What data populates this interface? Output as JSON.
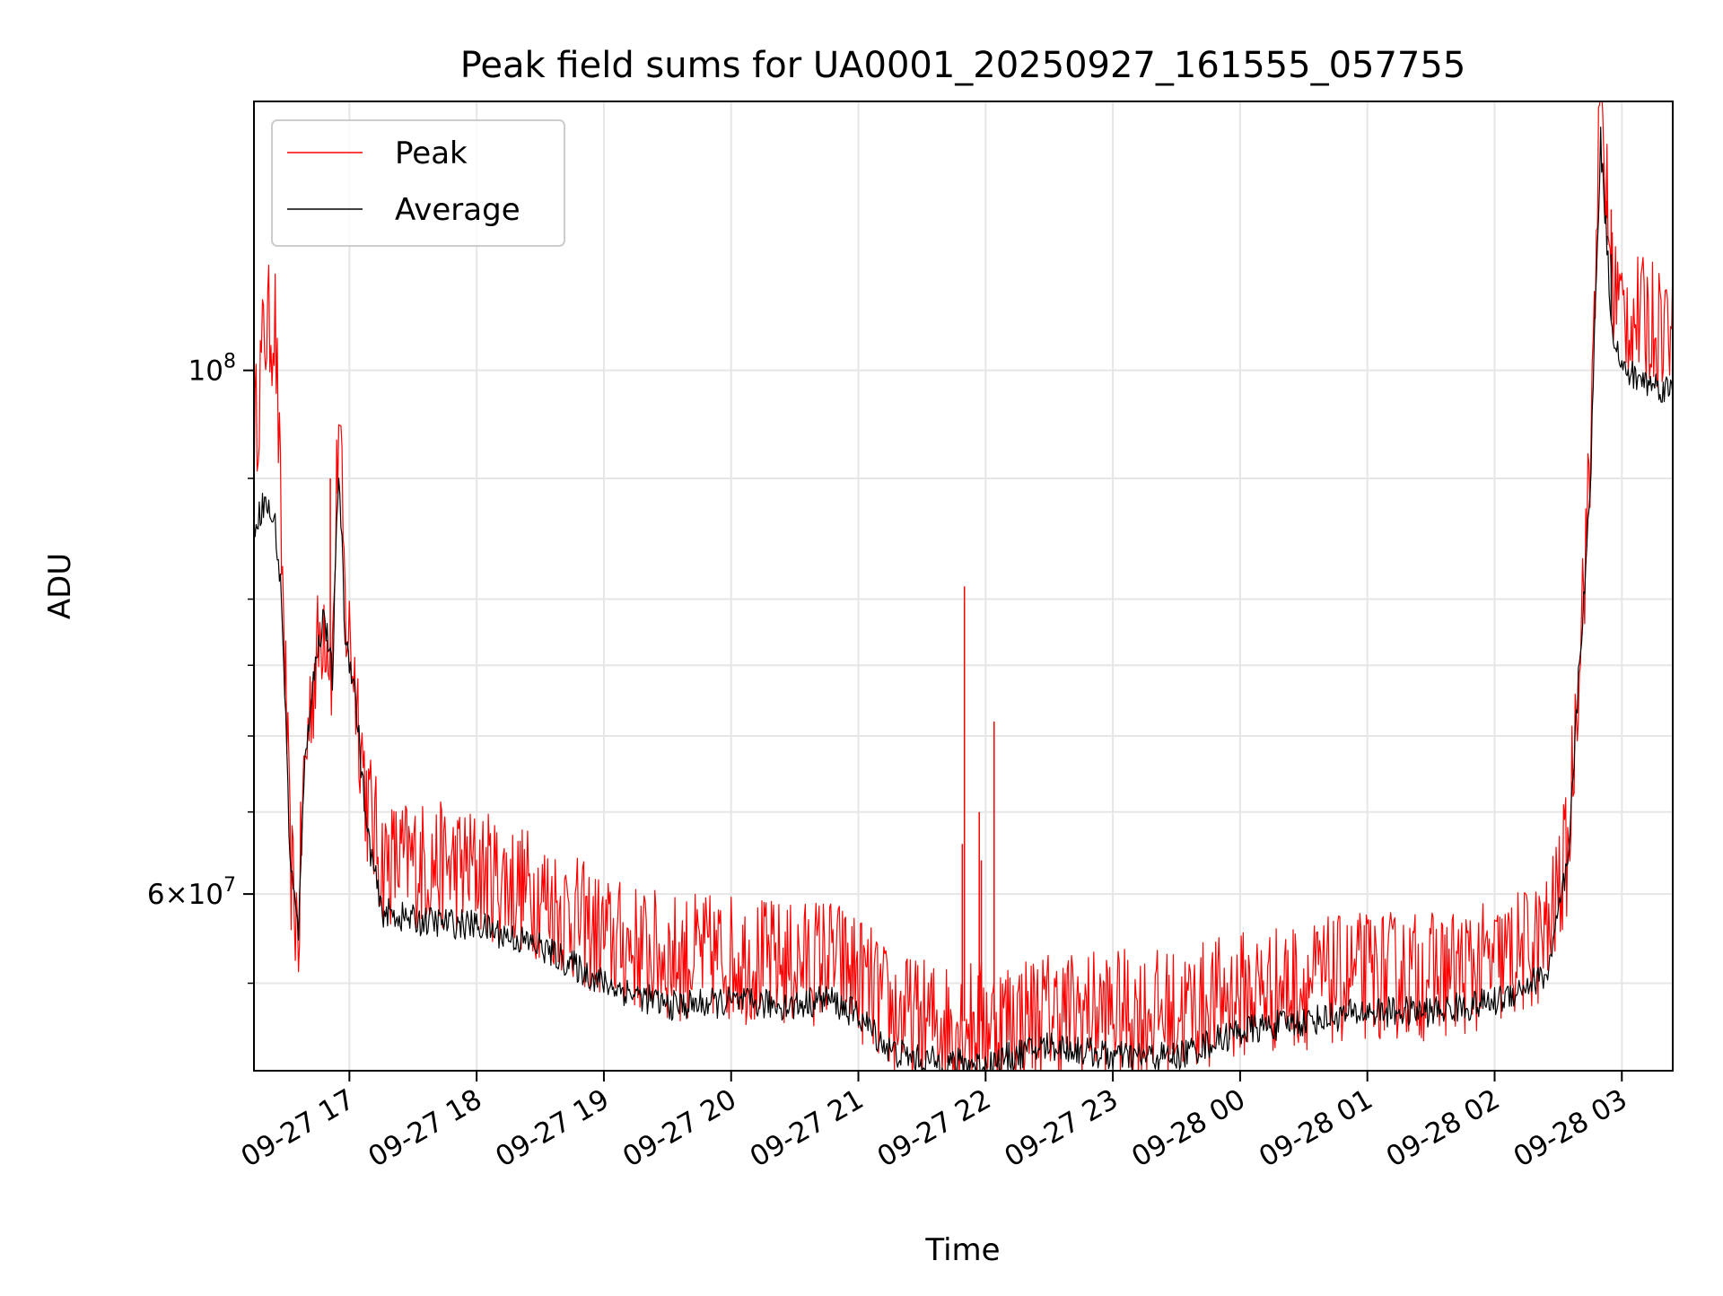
{
  "chart_data": {
    "type": "line",
    "title": "Peak field sums for UA0001_20250927_161555_057755",
    "xlabel": "Time",
    "ylabel": "ADU",
    "yscale": "log",
    "ylim": [
      50500000.0,
      130000000.0
    ],
    "xlim": [
      "2025-09-27 16:15",
      "2025-09-28 03:24"
    ],
    "grid": true,
    "legend_position": "upper left",
    "x_ticks": [
      {
        "label": "09-27 17",
        "time": "2025-09-27 17:00"
      },
      {
        "label": "09-27 18",
        "time": "2025-09-27 18:00"
      },
      {
        "label": "09-27 19",
        "time": "2025-09-27 19:00"
      },
      {
        "label": "09-27 20",
        "time": "2025-09-27 20:00"
      },
      {
        "label": "09-27 21",
        "time": "2025-09-27 21:00"
      },
      {
        "label": "09-27 22",
        "time": "2025-09-27 22:00"
      },
      {
        "label": "09-27 23",
        "time": "2025-09-27 23:00"
      },
      {
        "label": "09-28 00",
        "time": "2025-09-28 00:00"
      },
      {
        "label": "09-28 01",
        "time": "2025-09-28 01:00"
      },
      {
        "label": "09-28 02",
        "time": "2025-09-28 02:00"
      },
      {
        "label": "09-28 03",
        "time": "2025-09-28 03:00"
      }
    ],
    "y_major_ticks": [
      {
        "value": 60000000,
        "mantissa": "6",
        "base": "10",
        "exp": "7"
      },
      {
        "value": 100000000,
        "mantissa": "",
        "base": "10",
        "exp": "8"
      }
    ],
    "y_minor_grid": [
      55000000,
      65000000,
      70000000,
      75000000,
      80000000,
      90000000
    ],
    "series": [
      {
        "name": "Peak",
        "color": "#ff0000",
        "noise": 3800000,
        "points": [
          [
            "2025-09-27 16:15",
            93000000.0
          ],
          [
            "2025-09-27 16:20",
            104000000.0
          ],
          [
            "2025-09-27 16:25",
            105000000.0
          ],
          [
            "2025-09-27 16:28",
            84000000.0
          ],
          [
            "2025-09-27 16:32",
            62000000.0
          ],
          [
            "2025-09-27 16:36",
            57500000.0
          ],
          [
            "2025-09-27 16:38",
            66000000.0
          ],
          [
            "2025-09-27 16:42",
            73000000.0
          ],
          [
            "2025-09-27 16:48",
            79000000.0
          ],
          [
            "2025-09-27 16:52",
            75000000.0
          ],
          [
            "2025-09-27 16:55",
            96000000.0
          ],
          [
            "2025-09-27 16:58",
            79000000.0
          ],
          [
            "2025-09-27 17:02",
            75000000.0
          ],
          [
            "2025-09-27 17:08",
            66000000.0
          ],
          [
            "2025-09-27 17:15",
            62000000.0
          ],
          [
            "2025-09-27 17:30",
            62000000.0
          ],
          [
            "2025-09-27 18:00",
            61500000.0
          ],
          [
            "2025-09-27 18:30",
            60000000.0
          ],
          [
            "2025-09-27 19:00",
            57500000.0
          ],
          [
            "2025-09-27 19:30",
            56500000.0
          ],
          [
            "2025-09-27 20:00",
            56500000.0
          ],
          [
            "2025-09-27 20:30",
            56000000.0
          ],
          [
            "2025-09-27 20:45",
            56500000.0
          ],
          [
            "2025-09-27 21:00",
            55500000.0
          ],
          [
            "2025-09-27 21:15",
            53500000.0
          ],
          [
            "2025-09-27 21:30",
            53000000.0
          ],
          [
            "2025-09-27 22:00",
            53000000.0
          ],
          [
            "2025-09-27 22:30",
            53500000.0
          ],
          [
            "2025-09-27 23:00",
            53500000.0
          ],
          [
            "2025-09-27 23:30",
            53500000.0
          ],
          [
            "2025-09-28 00:00",
            54500000.0
          ],
          [
            "2025-09-28 00:30",
            55000000.0
          ],
          [
            "2025-09-28 01:00",
            55500000.0
          ],
          [
            "2025-09-28 01:30",
            55500000.0
          ],
          [
            "2025-09-28 02:00",
            56000000.0
          ],
          [
            "2025-09-28 02:25",
            57500000.0
          ],
          [
            "2025-09-28 02:35",
            63000000.0
          ],
          [
            "2025-09-28 02:45",
            90000000.0
          ],
          [
            "2025-09-28 02:48",
            116000000.0
          ],
          [
            "2025-09-28 02:50",
            130000000.0
          ],
          [
            "2025-09-28 02:55",
            110000000.0
          ],
          [
            "2025-09-28 03:00",
            106000000.0
          ],
          [
            "2025-09-28 03:10",
            105000000.0
          ],
          [
            "2025-09-28 03:24",
            105000000.0
          ]
        ],
        "spikes": [
          [
            "2025-09-27 21:50",
            81000000.0
          ],
          [
            "2025-09-27 21:49",
            63000000.0
          ],
          [
            "2025-09-27 21:57",
            65000000.0
          ],
          [
            "2025-09-27 21:58",
            62000000.0
          ],
          [
            "2025-09-27 22:04",
            71000000.0
          ],
          [
            "2025-09-27 16:51",
            90000000.0
          ],
          [
            "2025-09-28 02:53",
            116000000.0
          ],
          [
            "2025-09-28 02:55",
            117000000.0
          ]
        ]
      },
      {
        "name": "Average",
        "color": "#000000",
        "noise": 900000,
        "points": [
          [
            "2025-09-27 16:15",
            86000000.0
          ],
          [
            "2025-09-27 16:20",
            88000000.0
          ],
          [
            "2025-09-27 16:25",
            86000000.0
          ],
          [
            "2025-09-27 16:28",
            80000000.0
          ],
          [
            "2025-09-27 16:32",
            62000000.0
          ],
          [
            "2025-09-27 16:36",
            57500000.0
          ],
          [
            "2025-09-27 16:38",
            66000000.0
          ],
          [
            "2025-09-27 16:42",
            73000000.0
          ],
          [
            "2025-09-27 16:48",
            79000000.0
          ],
          [
            "2025-09-27 16:52",
            74000000.0
          ],
          [
            "2025-09-27 16:55",
            91000000.0
          ],
          [
            "2025-09-27 16:58",
            77000000.0
          ],
          [
            "2025-09-27 17:02",
            74000000.0
          ],
          [
            "2025-09-27 17:08",
            64000000.0
          ],
          [
            "2025-09-27 17:15",
            59000000.0
          ],
          [
            "2025-09-27 17:30",
            58500000.0
          ],
          [
            "2025-09-27 18:00",
            58200000.0
          ],
          [
            "2025-09-27 18:30",
            57000000.0
          ],
          [
            "2025-09-27 19:00",
            55000000.0
          ],
          [
            "2025-09-27 19:30",
            53800000.0
          ],
          [
            "2025-09-27 20:00",
            54000000.0
          ],
          [
            "2025-09-27 20:30",
            53800000.0
          ],
          [
            "2025-09-27 20:45",
            54200000.0
          ],
          [
            "2025-09-27 21:00",
            53300000.0
          ],
          [
            "2025-09-27 21:15",
            51500000.0
          ],
          [
            "2025-09-27 21:30",
            51000000.0
          ],
          [
            "2025-09-27 22:00",
            50800000.0
          ],
          [
            "2025-09-27 22:30",
            51800000.0
          ],
          [
            "2025-09-27 23:00",
            51200000.0
          ],
          [
            "2025-09-27 23:30",
            51200000.0
          ],
          [
            "2025-09-28 00:00",
            52500000.0
          ],
          [
            "2025-09-28 00:30",
            53000000.0
          ],
          [
            "2025-09-28 01:00",
            53500000.0
          ],
          [
            "2025-09-28 01:30",
            53500000.0
          ],
          [
            "2025-09-28 02:00",
            54000000.0
          ],
          [
            "2025-09-28 02:25",
            55500000.0
          ],
          [
            "2025-09-28 02:35",
            62000000.0
          ],
          [
            "2025-09-28 02:45",
            88000000.0
          ],
          [
            "2025-09-28 02:48",
            110000000.0
          ],
          [
            "2025-09-28 02:50",
            125000000.0
          ],
          [
            "2025-09-28 02:55",
            105000000.0
          ],
          [
            "2025-09-28 03:00",
            100000000.0
          ],
          [
            "2025-09-28 03:10",
            99000000.0
          ],
          [
            "2025-09-28 03:24",
            98000000.0
          ]
        ],
        "spikes": [
          [
            "2025-09-28 02:53",
            114000000.0
          ],
          [
            "2025-09-28 02:55",
            112000000.0
          ]
        ]
      }
    ]
  }
}
